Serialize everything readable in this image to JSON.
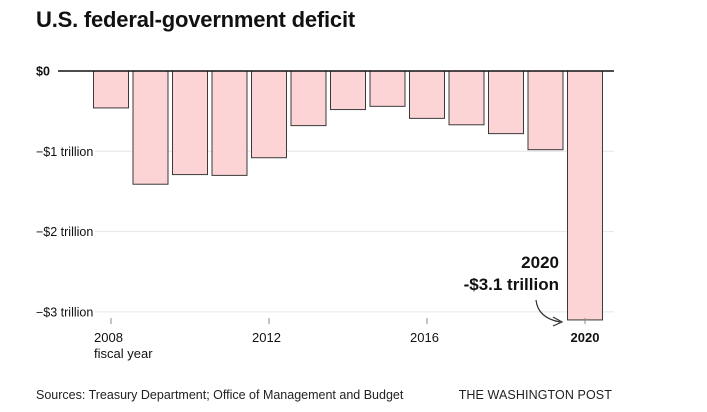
{
  "chart_data": {
    "type": "bar",
    "title": "U.S. federal-government deficit",
    "unit": "trillion USD",
    "ylim": [
      -3.1,
      0
    ],
    "y_ticks": [
      {
        "value": 0,
        "label": "$0"
      },
      {
        "value": -1,
        "label": "−$1 trillion"
      },
      {
        "value": -2,
        "label": "−$2 trillion"
      },
      {
        "value": -3,
        "label": "−$3 trillion"
      }
    ],
    "categories": [
      "2008",
      "2009",
      "2010",
      "2011",
      "2012",
      "2013",
      "2014",
      "2015",
      "2016",
      "2017",
      "2018",
      "2019",
      "2020"
    ],
    "values": [
      -0.46,
      -1.41,
      -1.29,
      -1.3,
      -1.08,
      -0.68,
      -0.48,
      -0.44,
      -0.59,
      -0.67,
      -0.78,
      -0.98,
      -3.1
    ],
    "x_ticks": [
      {
        "category": "2008",
        "label": "2008",
        "sublabel": "fiscal year"
      },
      {
        "category": "2012",
        "label": "2012"
      },
      {
        "category": "2016",
        "label": "2016"
      },
      {
        "category": "2020",
        "label": "2020",
        "bold": true
      }
    ],
    "annotation": {
      "category": "2020",
      "line1": "2020",
      "line2": "-$3.1 trillion"
    },
    "grid": true
  },
  "source": "Sources: Treasury Department; Office of Management and Budget",
  "credit": "THE WASHINGTON POST",
  "colors": {
    "bar_fill": "#fdd4d5",
    "bar_stroke": "#3a3a3a",
    "grid": "#e6e6e6",
    "baseline": "#111111",
    "text": "#111111"
  }
}
